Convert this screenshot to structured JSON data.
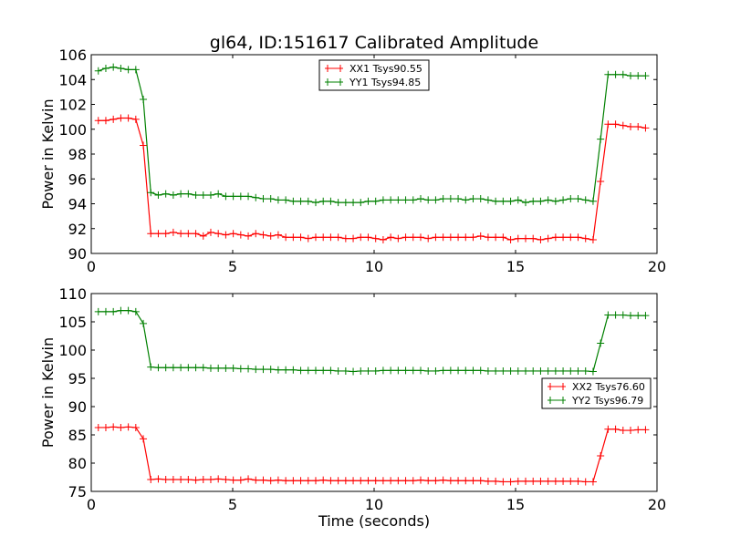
{
  "title": "gl64, ID:151617 Calibrated Amplitude",
  "colors": {
    "xx": "#ff0000",
    "yy": "#008000",
    "axis": "#000000"
  },
  "chart_data": [
    {
      "type": "line",
      "ylabel": "Power in Kelvin",
      "xlabel": "",
      "xlim": [
        0,
        20
      ],
      "ylim": [
        90,
        106
      ],
      "xticks": [
        0,
        5,
        10,
        15,
        20
      ],
      "yticks": [
        90,
        92,
        94,
        96,
        98,
        100,
        102,
        104,
        106
      ],
      "legend_placement": "upper-center",
      "x_start": 0.25,
      "x_step": 0.265,
      "series": [
        {
          "name": "XX1 Tsys90.55",
          "color": "#ff0000",
          "values": [
            100.7,
            100.7,
            100.8,
            100.9,
            100.9,
            100.8,
            98.7,
            91.6,
            91.6,
            91.6,
            91.7,
            91.6,
            91.6,
            91.6,
            91.4,
            91.7,
            91.6,
            91.5,
            91.6,
            91.5,
            91.4,
            91.6,
            91.5,
            91.4,
            91.5,
            91.3,
            91.3,
            91.3,
            91.2,
            91.3,
            91.3,
            91.3,
            91.3,
            91.2,
            91.2,
            91.3,
            91.3,
            91.2,
            91.1,
            91.3,
            91.2,
            91.3,
            91.3,
            91.3,
            91.2,
            91.3,
            91.3,
            91.3,
            91.3,
            91.3,
            91.3,
            91.4,
            91.3,
            91.3,
            91.3,
            91.1,
            91.2,
            91.2,
            91.2,
            91.1,
            91.2,
            91.3,
            91.3,
            91.3,
            91.3,
            91.2,
            91.1,
            95.8,
            100.4,
            100.4,
            100.3,
            100.2,
            100.2,
            100.1
          ]
        },
        {
          "name": "YY1 Tsys94.85",
          "color": "#008000",
          "values": [
            104.7,
            104.9,
            105.0,
            104.9,
            104.8,
            104.8,
            102.4,
            94.9,
            94.7,
            94.8,
            94.7,
            94.8,
            94.8,
            94.7,
            94.7,
            94.7,
            94.8,
            94.6,
            94.6,
            94.6,
            94.6,
            94.5,
            94.4,
            94.4,
            94.3,
            94.3,
            94.2,
            94.2,
            94.2,
            94.1,
            94.2,
            94.2,
            94.1,
            94.1,
            94.1,
            94.1,
            94.2,
            94.2,
            94.3,
            94.3,
            94.3,
            94.3,
            94.3,
            94.4,
            94.3,
            94.3,
            94.4,
            94.4,
            94.4,
            94.3,
            94.4,
            94.4,
            94.3,
            94.2,
            94.2,
            94.2,
            94.3,
            94.1,
            94.2,
            94.2,
            94.3,
            94.2,
            94.3,
            94.4,
            94.4,
            94.3,
            94.2,
            99.2,
            104.4,
            104.4,
            104.4,
            104.3,
            104.3,
            104.3
          ]
        }
      ]
    },
    {
      "type": "line",
      "ylabel": "Power in Kelvin",
      "xlabel": "Time (seconds)",
      "xlim": [
        0,
        20
      ],
      "ylim": [
        75,
        110
      ],
      "xticks": [
        0,
        5,
        10,
        15,
        20
      ],
      "yticks": [
        75,
        80,
        85,
        90,
        95,
        100,
        105,
        110
      ],
      "legend_placement": "center-right",
      "x_start": 0.25,
      "x_step": 0.265,
      "series": [
        {
          "name": "XX2 Tsys76.60",
          "color": "#ff0000",
          "values": [
            86.3,
            86.3,
            86.4,
            86.3,
            86.4,
            86.3,
            84.3,
            77.1,
            77.2,
            77.1,
            77.1,
            77.1,
            77.1,
            77.0,
            77.1,
            77.1,
            77.2,
            77.1,
            77.0,
            77.0,
            77.2,
            77.0,
            77.0,
            76.9,
            77.0,
            76.9,
            76.9,
            76.9,
            76.9,
            76.9,
            77.0,
            76.9,
            76.9,
            76.9,
            76.9,
            76.9,
            76.9,
            76.9,
            76.9,
            76.9,
            76.9,
            76.9,
            76.9,
            77.0,
            76.9,
            76.9,
            77.0,
            76.9,
            76.9,
            76.9,
            76.9,
            76.9,
            76.8,
            76.8,
            76.7,
            76.7,
            76.8,
            76.8,
            76.8,
            76.8,
            76.8,
            76.8,
            76.8,
            76.8,
            76.8,
            76.7,
            76.7,
            81.3,
            86.0,
            86.0,
            85.8,
            85.8,
            85.9,
            85.9
          ]
        },
        {
          "name": "YY2 Tsys96.79",
          "color": "#008000",
          "values": [
            106.8,
            106.8,
            106.8,
            107.0,
            107.0,
            106.8,
            104.7,
            97.0,
            96.9,
            96.9,
            96.9,
            96.9,
            96.9,
            96.9,
            96.9,
            96.8,
            96.8,
            96.8,
            96.8,
            96.7,
            96.7,
            96.6,
            96.6,
            96.6,
            96.5,
            96.5,
            96.5,
            96.4,
            96.4,
            96.4,
            96.4,
            96.4,
            96.3,
            96.3,
            96.2,
            96.3,
            96.3,
            96.3,
            96.4,
            96.4,
            96.4,
            96.4,
            96.4,
            96.4,
            96.3,
            96.3,
            96.4,
            96.4,
            96.4,
            96.4,
            96.4,
            96.4,
            96.3,
            96.3,
            96.3,
            96.3,
            96.3,
            96.3,
            96.3,
            96.3,
            96.3,
            96.3,
            96.3,
            96.3,
            96.3,
            96.3,
            96.2,
            101.2,
            106.2,
            106.2,
            106.2,
            106.1,
            106.1,
            106.1
          ]
        }
      ]
    }
  ]
}
